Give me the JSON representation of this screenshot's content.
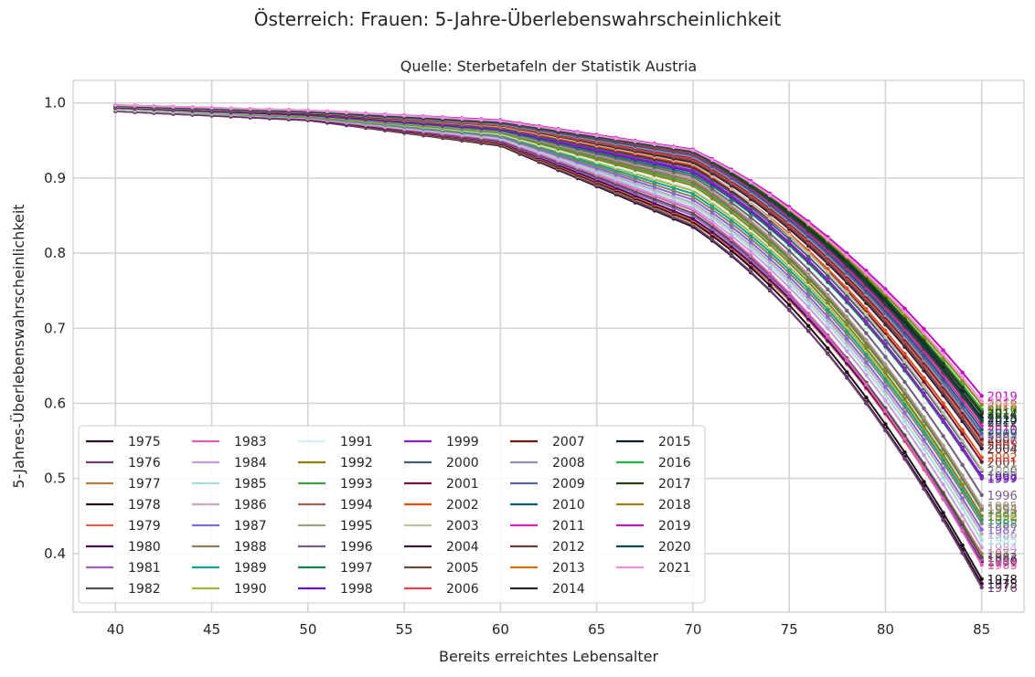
{
  "chart_data": {
    "type": "line",
    "title": "Österreich: Frauen: 5-Jahre-Überlebenswahrscheinlichkeit",
    "subtitle": "Quelle: Sterbetafeln der Statistik Austria",
    "xlabel": "Bereits erreichtes Lebensalter",
    "ylabel": "5-Jahres-Überlebenswahrscheinlichkeit",
    "xlim": [
      37.8,
      87.2
    ],
    "ylim": [
      0.322,
      1.03
    ],
    "xticks": [
      40,
      45,
      50,
      55,
      60,
      65,
      70,
      75,
      80,
      85
    ],
    "yticks": [
      0.4,
      0.5,
      0.6,
      0.7,
      0.8,
      0.9,
      1.0
    ],
    "x_start": 40,
    "x_end": 85,
    "grid": true,
    "legend_placement": "lower-left",
    "legend_columns": 6,
    "series": [
      {
        "name": "1975",
        "color": "#2b0f2b",
        "anchors": [
          0.989,
          0.977,
          0.943,
          0.835,
          0.36
        ]
      },
      {
        "name": "1976",
        "color": "#6b3f6b",
        "anchors": [
          0.989,
          0.977,
          0.944,
          0.837,
          0.355
        ]
      },
      {
        "name": "1977",
        "color": "#b57a45",
        "anchors": [
          0.99,
          0.978,
          0.945,
          0.84,
          0.4
        ]
      },
      {
        "name": "1978",
        "color": "#1f0f1a",
        "anchors": [
          0.99,
          0.978,
          0.946,
          0.842,
          0.366
        ]
      },
      {
        "name": "1979",
        "color": "#e35f50",
        "anchors": [
          0.99,
          0.978,
          0.947,
          0.844,
          0.388
        ]
      },
      {
        "name": "1980",
        "color": "#4a0a5a",
        "anchors": [
          0.99,
          0.978,
          0.948,
          0.846,
          0.39
        ]
      },
      {
        "name": "1981",
        "color": "#9b5fc0",
        "anchors": [
          0.99,
          0.979,
          0.949,
          0.85,
          0.392
        ]
      },
      {
        "name": "1982",
        "color": "#4f4f4f",
        "anchors": [
          0.99,
          0.979,
          0.95,
          0.853,
          0.395
        ]
      },
      {
        "name": "1983",
        "color": "#e060b0",
        "anchors": [
          0.991,
          0.979,
          0.951,
          0.857,
          0.385
        ]
      },
      {
        "name": "1984",
        "color": "#c89ae0",
        "anchors": [
          0.991,
          0.98,
          0.952,
          0.86,
          0.408
        ]
      },
      {
        "name": "1985",
        "color": "#a0e0e0",
        "anchors": [
          0.991,
          0.98,
          0.953,
          0.864,
          0.418
        ]
      },
      {
        "name": "1986",
        "color": "#c8a8b8",
        "anchors": [
          0.991,
          0.98,
          0.954,
          0.867,
          0.426
        ]
      },
      {
        "name": "1987",
        "color": "#7b6bdb",
        "anchors": [
          0.992,
          0.981,
          0.955,
          0.871,
          0.432
        ]
      },
      {
        "name": "1988",
        "color": "#8f7f5f",
        "anchors": [
          0.992,
          0.981,
          0.956,
          0.875,
          0.44
        ]
      },
      {
        "name": "1989",
        "color": "#10a090",
        "anchors": [
          0.992,
          0.981,
          0.957,
          0.879,
          0.445
        ]
      },
      {
        "name": "1990",
        "color": "#a0b840",
        "anchors": [
          0.992,
          0.982,
          0.958,
          0.883,
          0.45
        ]
      },
      {
        "name": "1991",
        "color": "#d8ecf8",
        "anchors": [
          0.992,
          0.982,
          0.959,
          0.886,
          0.453
        ]
      },
      {
        "name": "1992",
        "color": "#8f7f10",
        "anchors": [
          0.993,
          0.982,
          0.96,
          0.89,
          0.45
        ]
      },
      {
        "name": "1993",
        "color": "#40a040",
        "anchors": [
          0.993,
          0.983,
          0.961,
          0.893,
          0.458
        ]
      },
      {
        "name": "1994",
        "color": "#a06060",
        "anchors": [
          0.993,
          0.983,
          0.962,
          0.896,
          0.46
        ]
      },
      {
        "name": "1995",
        "color": "#a0a080",
        "anchors": [
          0.993,
          0.983,
          0.962,
          0.899,
          0.463
        ]
      },
      {
        "name": "1996",
        "color": "#706080",
        "anchors": [
          0.993,
          0.984,
          0.963,
          0.902,
          0.478
        ]
      },
      {
        "name": "1997",
        "color": "#108050",
        "anchors": [
          0.994,
          0.984,
          0.964,
          0.905,
          0.5
        ]
      },
      {
        "name": "1998",
        "color": "#6010d0",
        "anchors": [
          0.994,
          0.984,
          0.965,
          0.908,
          0.503
        ]
      },
      {
        "name": "1999",
        "color": "#9020c0",
        "anchors": [
          0.994,
          0.985,
          0.966,
          0.91,
          0.501
        ]
      },
      {
        "name": "2000",
        "color": "#406070",
        "anchors": [
          0.994,
          0.985,
          0.967,
          0.913,
          0.51
        ]
      },
      {
        "name": "2001",
        "color": "#701040",
        "anchors": [
          0.994,
          0.985,
          0.968,
          0.915,
          0.522
        ]
      },
      {
        "name": "2002",
        "color": "#e05010",
        "anchors": [
          0.995,
          0.986,
          0.968,
          0.917,
          0.528
        ]
      },
      {
        "name": "2003",
        "color": "#c0c0a0",
        "anchors": [
          0.995,
          0.986,
          0.969,
          0.919,
          0.512
        ]
      },
      {
        "name": "2004",
        "color": "#3a1a3a",
        "anchors": [
          0.995,
          0.986,
          0.97,
          0.921,
          0.54
        ]
      },
      {
        "name": "2005",
        "color": "#6a4a3a",
        "anchors": [
          0.995,
          0.987,
          0.97,
          0.923,
          0.545
        ]
      },
      {
        "name": "2006",
        "color": "#e04050",
        "anchors": [
          0.995,
          0.987,
          0.971,
          0.925,
          0.55
        ]
      },
      {
        "name": "2007",
        "color": "#6a1a10",
        "anchors": [
          0.995,
          0.987,
          0.972,
          0.927,
          0.553
        ]
      },
      {
        "name": "2008",
        "color": "#9090b0",
        "anchors": [
          0.995,
          0.987,
          0.972,
          0.928,
          0.556
        ]
      },
      {
        "name": "2009",
        "color": "#6060a0",
        "anchors": [
          0.996,
          0.988,
          0.973,
          0.93,
          0.56
        ]
      },
      {
        "name": "2010",
        "color": "#106070",
        "anchors": [
          0.996,
          0.988,
          0.973,
          0.931,
          0.565
        ]
      },
      {
        "name": "2011",
        "color": "#e020c0",
        "anchors": [
          0.996,
          0.988,
          0.974,
          0.932,
          0.57
        ]
      },
      {
        "name": "2012",
        "color": "#6a3a3a",
        "anchors": [
          0.996,
          0.988,
          0.974,
          0.933,
          0.575
        ]
      },
      {
        "name": "2013",
        "color": "#d07010",
        "anchors": [
          0.996,
          0.989,
          0.975,
          0.934,
          0.59
        ]
      },
      {
        "name": "2014",
        "color": "#2a2a2a",
        "anchors": [
          0.996,
          0.989,
          0.975,
          0.935,
          0.586
        ]
      },
      {
        "name": "2015",
        "color": "#0a2030",
        "anchors": [
          0.996,
          0.989,
          0.975,
          0.935,
          0.581
        ]
      },
      {
        "name": "2016",
        "color": "#20b040",
        "anchors": [
          0.996,
          0.989,
          0.976,
          0.936,
          0.592
        ]
      },
      {
        "name": "2017",
        "color": "#2a4010",
        "anchors": [
          0.996,
          0.989,
          0.976,
          0.937,
          0.588
        ]
      },
      {
        "name": "2018",
        "color": "#9a8010",
        "anchors": [
          0.997,
          0.99,
          0.976,
          0.937,
          0.598
        ]
      },
      {
        "name": "2019",
        "color": "#c010c0",
        "anchors": [
          0.997,
          0.99,
          0.977,
          0.938,
          0.61
        ]
      },
      {
        "name": "2020",
        "color": "#0a4a40",
        "anchors": [
          0.996,
          0.989,
          0.975,
          0.935,
          0.578
        ]
      },
      {
        "name": "2021",
        "color": "#f090d8",
        "anchors": [
          0.997,
          0.99,
          0.976,
          0.937,
          0.603
        ]
      }
    ]
  }
}
